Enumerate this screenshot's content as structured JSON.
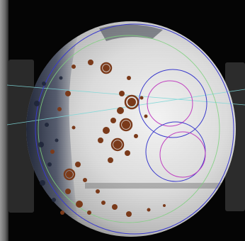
{
  "image": {
    "subject": "circular-specimen",
    "colors": {
      "background": "#050505",
      "surface_light": "#e6e6e6",
      "surface_mid": "#bdbdbd",
      "dark_patch": "#2c3448",
      "stain": "#7a3a1a",
      "overlay_blue": "#3a3acc",
      "overlay_magenta": "#c040c0",
      "overlay_green": "#7fd07f",
      "overlay_cyan": "#7fd8d8"
    }
  }
}
